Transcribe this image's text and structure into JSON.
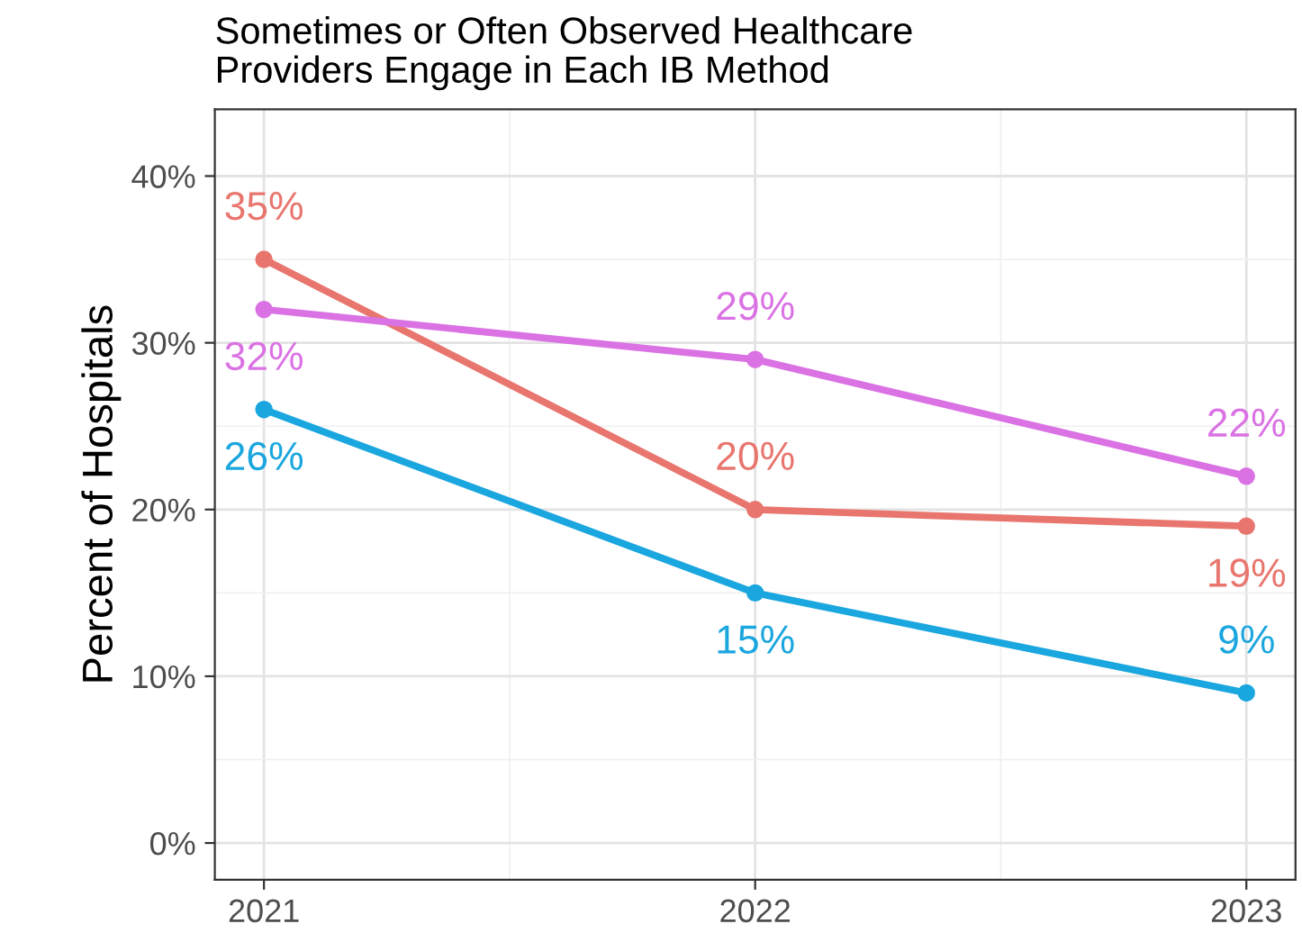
{
  "chart_data": {
    "type": "line",
    "title": "Sometimes or Often Observed Healthcare\nProviders Engage in Each IB Method",
    "ylabel": "Percent of Hospitals",
    "categories": [
      "2021",
      "2022",
      "2023"
    ],
    "series": [
      {
        "color": "#e8766e",
        "values": [
          35,
          20,
          19
        ],
        "value_labels": [
          "35%",
          "20%",
          "19%"
        ]
      },
      {
        "color": "#da72e4",
        "values": [
          32,
          29,
          22
        ],
        "value_labels": [
          "32%",
          "29%",
          "22%"
        ]
      },
      {
        "color": "#1aa6de",
        "values": [
          26,
          15,
          9
        ],
        "value_labels": [
          "26%",
          "15%",
          "9%"
        ]
      }
    ],
    "ylim": [
      -2.2,
      44
    ],
    "yticks": [
      {
        "value": 0,
        "label": "0%"
      },
      {
        "value": 10,
        "label": "10%"
      },
      {
        "value": 20,
        "label": "20%"
      },
      {
        "value": 30,
        "label": "30%"
      },
      {
        "value": 40,
        "label": "40%"
      }
    ],
    "grid": true,
    "marker": "circle",
    "line_style": "solid",
    "legend": false
  }
}
